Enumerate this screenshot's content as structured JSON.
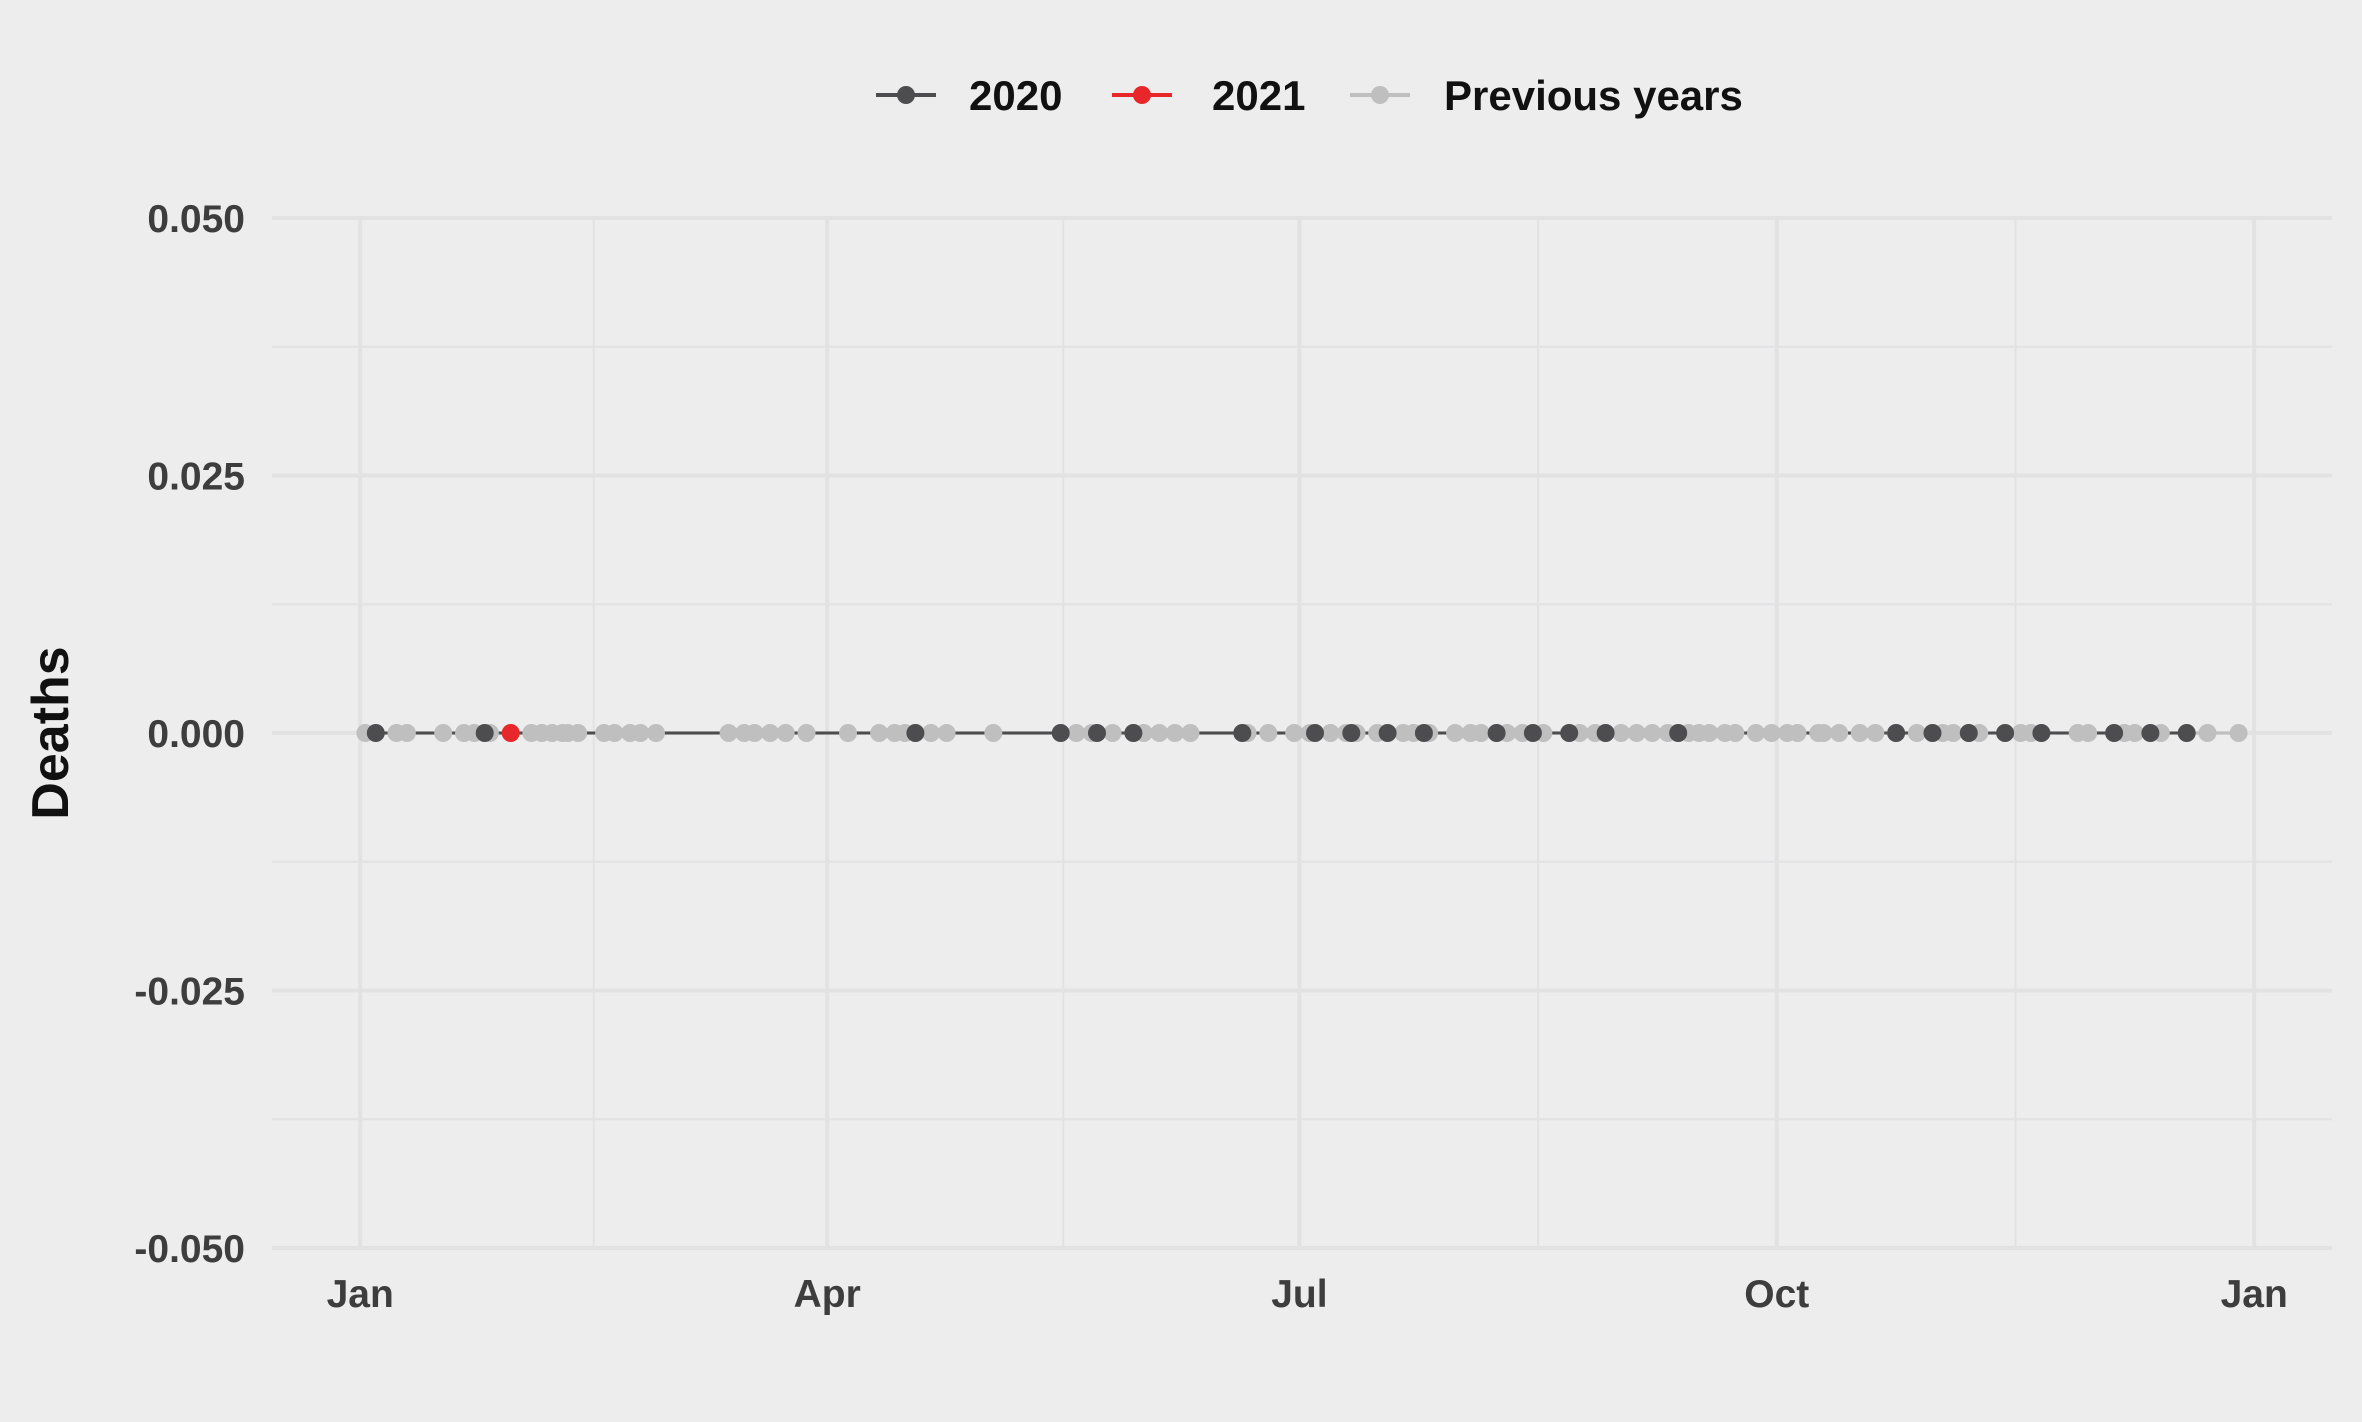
{
  "chart_data": {
    "type": "line",
    "title": "",
    "xlabel": "",
    "ylabel": "Deaths",
    "ylim": [
      -0.05,
      0.05
    ],
    "y_ticks": [
      "0.050",
      "0.025",
      "0.000",
      "-0.025",
      "-0.050"
    ],
    "y_tick_values": [
      0.05,
      0.025,
      0.0,
      -0.025,
      -0.05
    ],
    "x_ticks": [
      "Jan",
      "Apr",
      "Jul",
      "Oct",
      "Jan"
    ],
    "x_tick_days": [
      0,
      90,
      181,
      273,
      365
    ],
    "xlim_days": [
      -17,
      380
    ],
    "x_axis": "day of year",
    "grid": true,
    "legend_position": "top",
    "series": [
      {
        "name": "Previous years",
        "color": "#bfbfbf",
        "x_days": [
          1,
          7,
          9,
          16,
          20,
          22,
          25,
          33,
          35,
          37,
          39,
          40,
          42,
          47,
          49,
          52,
          54,
          57,
          71,
          74,
          76,
          79,
          82,
          86,
          94,
          100,
          103,
          105,
          107,
          110,
          113,
          122,
          138,
          141,
          145,
          149,
          151,
          154,
          157,
          160,
          171,
          175,
          180,
          183,
          187,
          190,
          192,
          196,
          201,
          203,
          206,
          211,
          214,
          216,
          219,
          221,
          224,
          228,
          235,
          238,
          240,
          243,
          246,
          249,
          252,
          254,
          256,
          258,
          260,
          263,
          265,
          269,
          272,
          275,
          277,
          281,
          282,
          285,
          289,
          292,
          296,
          300,
          305,
          307,
          310,
          312,
          320,
          322,
          331,
          333,
          340,
          342,
          347,
          356,
          362
        ],
        "y": [
          0,
          0,
          0,
          0,
          0,
          0,
          0,
          0,
          0,
          0,
          0,
          0,
          0,
          0,
          0,
          0,
          0,
          0,
          0,
          0,
          0,
          0,
          0,
          0,
          0,
          0,
          0,
          0,
          0,
          0,
          0,
          0,
          0,
          0,
          0,
          0,
          0,
          0,
          0,
          0,
          0,
          0,
          0,
          0,
          0,
          0,
          0,
          0,
          0,
          0,
          0,
          0,
          0,
          0,
          0,
          0,
          0,
          0,
          0,
          0,
          0,
          0,
          0,
          0,
          0,
          0,
          0,
          0,
          0,
          0,
          0,
          0,
          0,
          0,
          0,
          0,
          0,
          0,
          0,
          0,
          0,
          0,
          0,
          0,
          0,
          0,
          0,
          0,
          0,
          0,
          0,
          0,
          0,
          0,
          0
        ]
      },
      {
        "name": "2020",
        "color": "#4d4d4f",
        "x_days": [
          3,
          24,
          107,
          135,
          142,
          149,
          170,
          184,
          191,
          198,
          205,
          219,
          226,
          233,
          240,
          254,
          296,
          303,
          310,
          317,
          324,
          338,
          345,
          352
        ],
        "y": [
          0,
          0,
          0,
          0,
          0,
          0,
          0,
          0,
          0,
          0,
          0,
          0,
          0,
          0,
          0,
          0,
          0,
          0,
          0,
          0,
          0,
          0,
          0,
          0
        ]
      },
      {
        "name": "2021",
        "color": "#e8272a",
        "x_days": [
          29
        ],
        "y": [
          0
        ]
      }
    ]
  }
}
